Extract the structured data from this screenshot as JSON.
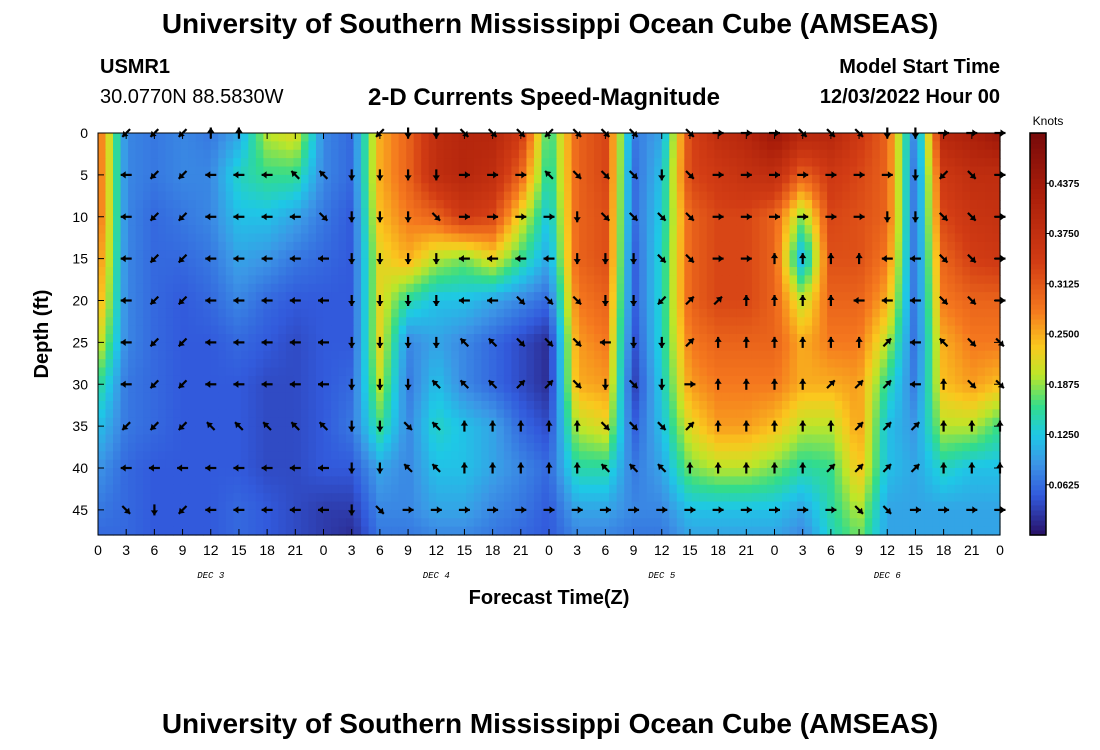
{
  "header": {
    "main_title": "University of Southern Mississippi Ocean Cube (AMSEAS)",
    "station_id": "USMR1",
    "coordinates": "30.0770N  88.5830W",
    "subtitle": "2-D Currents Speed-Magnitude",
    "model_start_label": "Model Start Time",
    "model_start_value": "12/03/2022 Hour 00"
  },
  "footer": {
    "repeated_title": "University of Southern Mississippi Ocean Cube (AMSEAS)"
  },
  "chart_data": {
    "type": "heatmap",
    "title": "2-D Currents Speed-Magnitude",
    "xlabel": "Forecast Time(Z)",
    "ylabel": "Depth (ft)",
    "x_unit": "hours since 12/03/2022 00Z",
    "xlim": [
      0,
      96
    ],
    "ylim": [
      48,
      0
    ],
    "x_tick_values": [
      0,
      3,
      6,
      9,
      12,
      15,
      18,
      21,
      24,
      27,
      30,
      33,
      36,
      39,
      42,
      45,
      48,
      51,
      54,
      57,
      60,
      63,
      66,
      69,
      72,
      75,
      78,
      81,
      84,
      87,
      90,
      93,
      96
    ],
    "x_tick_labels": [
      "0",
      "3",
      "6",
      "9",
      "12",
      "15",
      "18",
      "21",
      "0",
      "3",
      "6",
      "9",
      "12",
      "15",
      "18",
      "21",
      "0",
      "3",
      "6",
      "9",
      "12",
      "15",
      "18",
      "21",
      "0",
      "3",
      "6",
      "9",
      "12",
      "15",
      "18",
      "21",
      "0"
    ],
    "day_labels": [
      {
        "text": "DEC 3",
        "hour": 12
      },
      {
        "text": "DEC 4",
        "hour": 36
      },
      {
        "text": "DEC 5",
        "hour": 60
      },
      {
        "text": "DEC 6",
        "hour": 84
      }
    ],
    "y_ticks": [
      0,
      5,
      10,
      15,
      20,
      25,
      30,
      35,
      40,
      45
    ],
    "colorbar": {
      "label": "Knots",
      "min": 0,
      "max": 0.5,
      "ticks": [
        0.0625,
        0.125,
        0.1875,
        0.25,
        0.3125,
        0.375,
        0.4375
      ],
      "tick_labels": [
        "0.0625",
        "0.1250",
        "0.1875",
        "0.2500",
        "0.3125",
        "0.3750",
        "0.4375"
      ]
    },
    "speed_grid": {
      "hours": [
        0,
        3,
        6,
        9,
        12,
        15,
        18,
        21,
        24,
        27,
        30,
        33,
        36,
        39,
        42,
        45,
        48,
        51,
        54,
        57,
        60,
        63,
        66,
        69,
        72,
        75,
        78,
        81,
        84,
        87,
        90,
        93,
        96
      ],
      "depths": [
        0,
        5,
        10,
        15,
        20,
        25,
        30,
        35,
        40,
        45,
        48
      ],
      "rows": [
        [
          0.3,
          0.08,
          0.07,
          0.08,
          0.07,
          0.1,
          0.2,
          0.22,
          0.08,
          0.06,
          0.25,
          0.3,
          0.38,
          0.4,
          0.4,
          0.35,
          0.15,
          0.3,
          0.33,
          0.07,
          0.1,
          0.33,
          0.38,
          0.4,
          0.45,
          0.4,
          0.4,
          0.35,
          0.3,
          0.07,
          0.4,
          0.42,
          0.45
        ],
        [
          0.3,
          0.08,
          0.07,
          0.08,
          0.08,
          0.14,
          0.16,
          0.16,
          0.08,
          0.06,
          0.25,
          0.3,
          0.38,
          0.4,
          0.38,
          0.3,
          0.14,
          0.3,
          0.33,
          0.06,
          0.12,
          0.33,
          0.35,
          0.37,
          0.38,
          0.3,
          0.35,
          0.33,
          0.3,
          0.06,
          0.35,
          0.38,
          0.38
        ],
        [
          0.3,
          0.08,
          0.06,
          0.07,
          0.08,
          0.12,
          0.12,
          0.1,
          0.07,
          0.05,
          0.24,
          0.28,
          0.3,
          0.35,
          0.33,
          0.22,
          0.12,
          0.3,
          0.32,
          0.06,
          0.13,
          0.3,
          0.33,
          0.33,
          0.3,
          0.18,
          0.33,
          0.32,
          0.3,
          0.06,
          0.33,
          0.36,
          0.37
        ],
        [
          0.28,
          0.08,
          0.06,
          0.06,
          0.07,
          0.1,
          0.09,
          0.07,
          0.06,
          0.05,
          0.22,
          0.25,
          0.2,
          0.18,
          0.22,
          0.16,
          0.1,
          0.3,
          0.32,
          0.05,
          0.14,
          0.3,
          0.33,
          0.33,
          0.3,
          0.1,
          0.32,
          0.32,
          0.28,
          0.06,
          0.3,
          0.34,
          0.35
        ],
        [
          0.26,
          0.08,
          0.06,
          0.05,
          0.06,
          0.08,
          0.06,
          0.05,
          0.05,
          0.05,
          0.22,
          0.15,
          0.12,
          0.12,
          0.1,
          0.08,
          0.06,
          0.28,
          0.3,
          0.05,
          0.14,
          0.3,
          0.33,
          0.33,
          0.3,
          0.2,
          0.3,
          0.3,
          0.25,
          0.06,
          0.28,
          0.3,
          0.3
        ],
        [
          0.22,
          0.08,
          0.06,
          0.05,
          0.05,
          0.06,
          0.05,
          0.04,
          0.05,
          0.05,
          0.22,
          0.08,
          0.1,
          0.08,
          0.06,
          0.04,
          0.02,
          0.26,
          0.28,
          0.04,
          0.14,
          0.28,
          0.3,
          0.3,
          0.3,
          0.25,
          0.28,
          0.28,
          0.2,
          0.06,
          0.25,
          0.28,
          0.28
        ],
        [
          0.16,
          0.07,
          0.06,
          0.05,
          0.05,
          0.05,
          0.04,
          0.04,
          0.05,
          0.06,
          0.2,
          0.07,
          0.12,
          0.08,
          0.06,
          0.04,
          0.02,
          0.25,
          0.26,
          0.03,
          0.13,
          0.26,
          0.28,
          0.28,
          0.28,
          0.25,
          0.25,
          0.26,
          0.15,
          0.07,
          0.24,
          0.26,
          0.24
        ],
        [
          0.12,
          0.07,
          0.06,
          0.05,
          0.05,
          0.05,
          0.04,
          0.04,
          0.05,
          0.07,
          0.16,
          0.08,
          0.14,
          0.12,
          0.1,
          0.06,
          0.04,
          0.2,
          0.22,
          0.05,
          0.12,
          0.22,
          0.26,
          0.26,
          0.24,
          0.2,
          0.2,
          0.26,
          0.12,
          0.09,
          0.2,
          0.2,
          0.16
        ],
        [
          0.09,
          0.06,
          0.05,
          0.05,
          0.05,
          0.05,
          0.04,
          0.04,
          0.05,
          0.05,
          0.1,
          0.08,
          0.12,
          0.12,
          0.1,
          0.08,
          0.06,
          0.15,
          0.15,
          0.07,
          0.1,
          0.18,
          0.2,
          0.2,
          0.18,
          0.15,
          0.16,
          0.24,
          0.12,
          0.1,
          0.14,
          0.12,
          0.12
        ],
        [
          0.07,
          0.06,
          0.05,
          0.05,
          0.05,
          0.06,
          0.05,
          0.04,
          0.03,
          0.03,
          0.08,
          0.08,
          0.1,
          0.1,
          0.08,
          0.07,
          0.05,
          0.1,
          0.1,
          0.08,
          0.08,
          0.12,
          0.12,
          0.12,
          0.12,
          0.1,
          0.15,
          0.2,
          0.1,
          0.1,
          0.1,
          0.1,
          0.1
        ],
        [
          0.06,
          0.06,
          0.05,
          0.05,
          0.05,
          0.06,
          0.05,
          0.04,
          0.03,
          0.02,
          0.07,
          0.07,
          0.08,
          0.08,
          0.07,
          0.06,
          0.05,
          0.08,
          0.08,
          0.07,
          0.07,
          0.1,
          0.1,
          0.1,
          0.1,
          0.08,
          0.14,
          0.18,
          0.1,
          0.1,
          0.1,
          0.1,
          0.1
        ]
      ]
    },
    "vector_rows": [
      {
        "depth": 0,
        "dirs": [
          "",
          "SW",
          "SW",
          "SW",
          "N",
          "N",
          "",
          "",
          "",
          "",
          "SW",
          "S",
          "S",
          "SE",
          "SE",
          "SE",
          "SW",
          "SE",
          "SE",
          "SE",
          "",
          "SE",
          "E",
          "E",
          "E",
          "SE",
          "SE",
          "SE",
          "S",
          "S",
          "E",
          "E",
          "E"
        ]
      },
      {
        "depth": 5,
        "dirs": [
          "",
          "W",
          "SW",
          "SW",
          "W",
          "W",
          "W",
          "NW",
          "NW",
          "S",
          "S",
          "S",
          "S",
          "E",
          "E",
          "E",
          "NW",
          "SE",
          "SE",
          "SE",
          "S",
          "SE",
          "E",
          "E",
          "E",
          "E",
          "E",
          "E",
          "E",
          "S",
          "SW",
          "SE",
          "E"
        ]
      },
      {
        "depth": 10,
        "dirs": [
          "",
          "W",
          "SW",
          "SW",
          "W",
          "W",
          "W",
          "W",
          "SE",
          "S",
          "S",
          "S",
          "SE",
          "E",
          "E",
          "E",
          "E",
          "S",
          "SE",
          "SE",
          "SE",
          "SE",
          "E",
          "E",
          "E",
          "E",
          "E",
          "E",
          "S",
          "S",
          "SE",
          "SE",
          "E"
        ]
      },
      {
        "depth": 15,
        "dirs": [
          "",
          "W",
          "SW",
          "SW",
          "W",
          "W",
          "W",
          "W",
          "W",
          "S",
          "S",
          "S",
          "S",
          "W",
          "W",
          "W",
          "W",
          "S",
          "S",
          "S",
          "SE",
          "SE",
          "E",
          "E",
          "N",
          "N",
          "N",
          "N",
          "W",
          "W",
          "SE",
          "SE",
          "E"
        ]
      },
      {
        "depth": 20,
        "dirs": [
          "",
          "W",
          "SW",
          "SW",
          "W",
          "W",
          "W",
          "W",
          "W",
          "S",
          "S",
          "S",
          "S",
          "W",
          "W",
          "SE",
          "SE",
          "SE",
          "S",
          "S",
          "SW",
          "NE",
          "NE",
          "N",
          "N",
          "N",
          "N",
          "W",
          "W",
          "W",
          "SE",
          "SE",
          "E"
        ]
      },
      {
        "depth": 25,
        "dirs": [
          "",
          "W",
          "SW",
          "SW",
          "W",
          "W",
          "W",
          "W",
          "W",
          "S",
          "S",
          "S",
          "S",
          "NW",
          "NW",
          "SE",
          "SE",
          "SE",
          "W",
          "S",
          "S",
          "NE",
          "N",
          "N",
          "N",
          "N",
          "N",
          "N",
          "NE",
          "W",
          "NW",
          "SE",
          "SE"
        ]
      },
      {
        "depth": 30,
        "dirs": [
          "",
          "W",
          "SW",
          "SW",
          "W",
          "W",
          "W",
          "W",
          "W",
          "S",
          "S",
          "S",
          "NW",
          "NW",
          "NW",
          "NE",
          "NE",
          "SE",
          "S",
          "SE",
          "S",
          "E",
          "N",
          "N",
          "N",
          "N",
          "NE",
          "NE",
          "NE",
          "W",
          "N",
          "SE",
          "SE"
        ]
      },
      {
        "depth": 35,
        "dirs": [
          "",
          "SW",
          "SW",
          "SW",
          "NW",
          "NW",
          "NW",
          "NW",
          "NW",
          "S",
          "S",
          "SE",
          "NW",
          "N",
          "N",
          "N",
          "N",
          "N",
          "SE",
          "SE",
          "SE",
          "NE",
          "N",
          "N",
          "N",
          "N",
          "N",
          "NE",
          "NE",
          "NE",
          "N",
          "N",
          "N"
        ]
      },
      {
        "depth": 40,
        "dirs": [
          "",
          "W",
          "W",
          "W",
          "W",
          "W",
          "W",
          "W",
          "W",
          "S",
          "S",
          "NW",
          "NW",
          "N",
          "N",
          "N",
          "N",
          "N",
          "NW",
          "NW",
          "NW",
          "N",
          "N",
          "N",
          "N",
          "N",
          "NE",
          "NE",
          "NE",
          "NE",
          "N",
          "N",
          "N"
        ]
      },
      {
        "depth": 45,
        "dirs": [
          "",
          "SE",
          "S",
          "SW",
          "W",
          "W",
          "W",
          "W",
          "W",
          "S",
          "SE",
          "E",
          "E",
          "E",
          "E",
          "E",
          "E",
          "E",
          "E",
          "E",
          "E",
          "E",
          "E",
          "E",
          "E",
          "E",
          "E",
          "SE",
          "SE",
          "E",
          "E",
          "E",
          "E"
        ]
      }
    ]
  }
}
